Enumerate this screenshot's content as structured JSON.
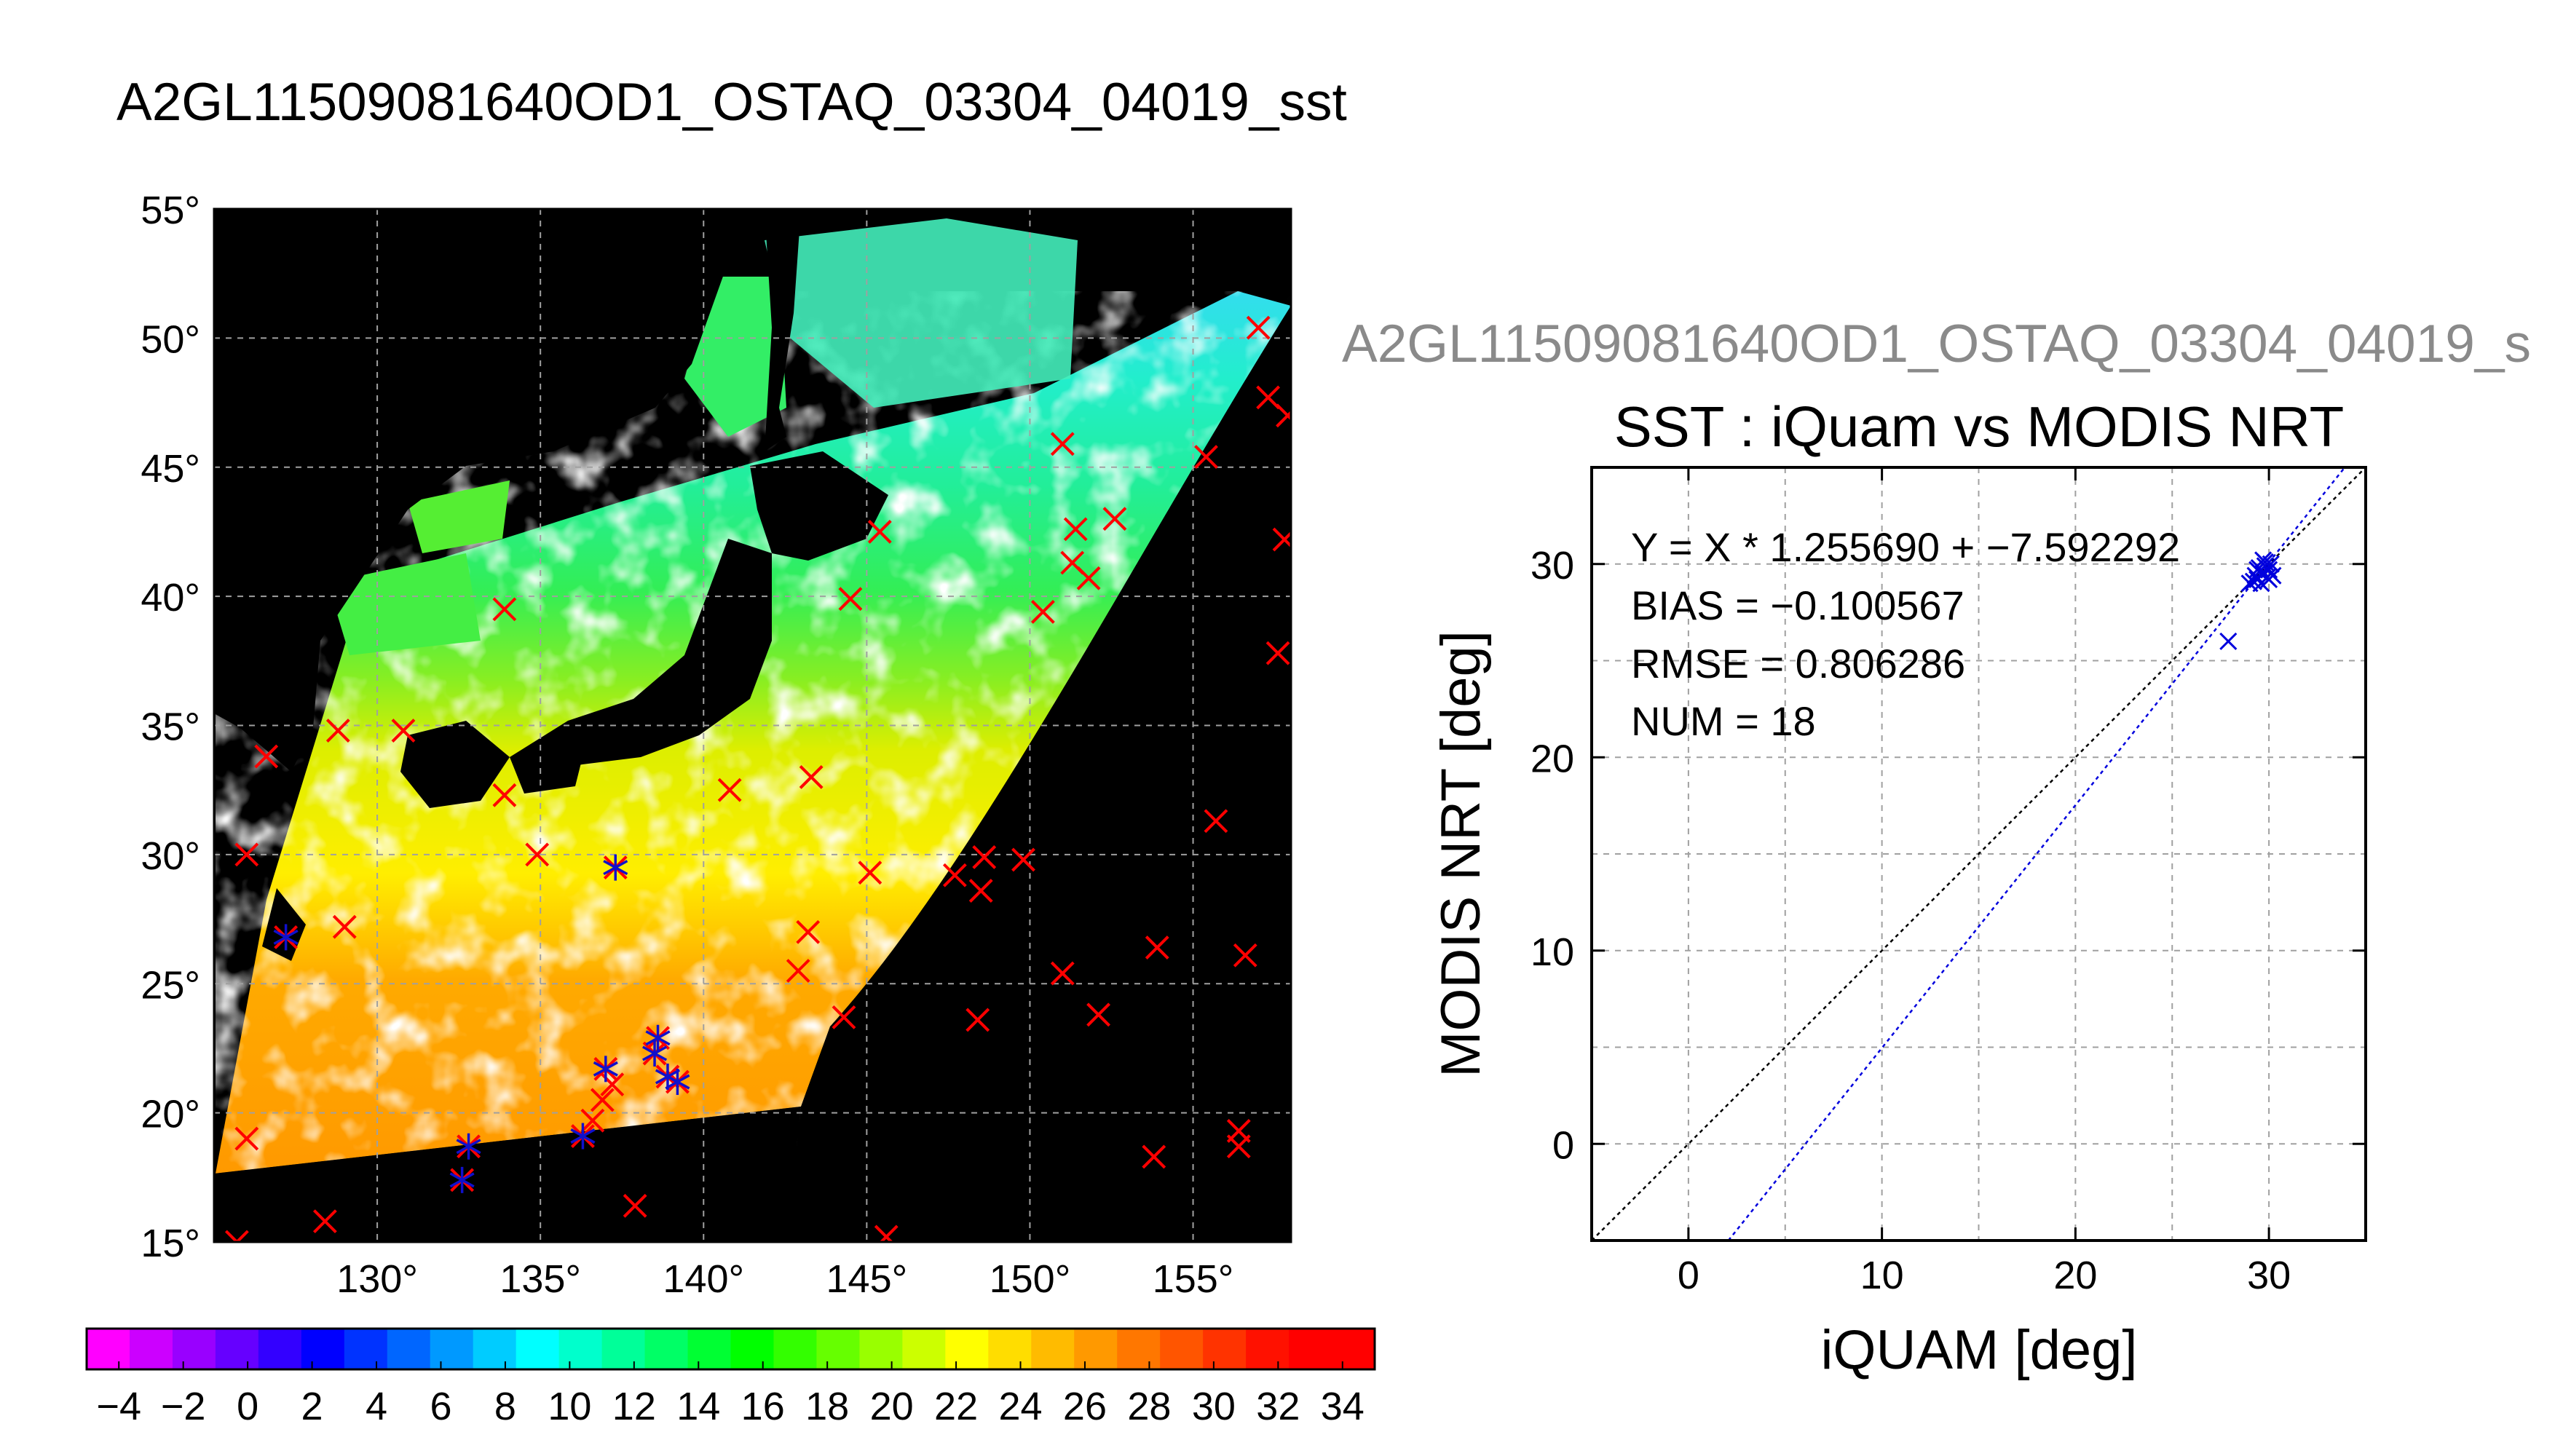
{
  "figure_title": "A2GL11509081640OD1_OSTAQ_03304_04019_sst",
  "scatter_ghost_title": "A2GL11509081640OD1_OSTAQ_03304_04019_s",
  "colors": {
    "map_background": "#000000",
    "grid": "#a0a0a0",
    "buoy_marker": "#ff0000",
    "matchup_marker": "#1010cc",
    "fit_line": "#0000dd",
    "one_to_one_line": "#000000"
  },
  "chart_data": [
    {
      "type": "heatmap",
      "description_type": "map",
      "xaxis_ticks": [
        "130°",
        "135°",
        "140°",
        "145°",
        "150°",
        "155°"
      ],
      "x_tick_values": [
        130,
        135,
        140,
        145,
        150,
        155
      ],
      "yaxis_ticks": [
        "15°",
        "20°",
        "25°",
        "30°",
        "35°",
        "40°",
        "45°",
        "50°",
        "55°"
      ],
      "y_tick_values": [
        15,
        20,
        25,
        30,
        35,
        40,
        45,
        50,
        55
      ],
      "xlim": [
        125,
        158
      ],
      "ylim": [
        15,
        55
      ],
      "grid": true,
      "red_x_markers": [
        [
          125.7,
          15.0
        ],
        [
          126.0,
          19.0
        ],
        [
          126.0,
          30.0
        ],
        [
          126.6,
          33.8
        ],
        [
          127.2,
          26.8
        ],
        [
          128.4,
          15.8
        ],
        [
          128.8,
          34.8
        ],
        [
          129.0,
          27.2
        ],
        [
          130.8,
          34.8
        ],
        [
          132.6,
          17.4
        ],
        [
          132.8,
          18.7
        ],
        [
          133.9,
          39.5
        ],
        [
          133.9,
          32.3
        ],
        [
          134.9,
          30.0
        ],
        [
          136.3,
          19.1
        ],
        [
          136.6,
          19.7
        ],
        [
          136.9,
          20.5
        ],
        [
          137.2,
          21.1
        ],
        [
          137.0,
          21.7
        ],
        [
          137.3,
          29.5
        ],
        [
          137.9,
          16.4
        ],
        [
          138.5,
          22.3
        ],
        [
          138.6,
          22.9
        ],
        [
          138.9,
          21.4
        ],
        [
          139.2,
          21.2
        ],
        [
          140.8,
          32.5
        ],
        [
          142.9,
          25.5
        ],
        [
          143.2,
          27.0
        ],
        [
          143.3,
          33.0
        ],
        [
          144.3,
          23.7
        ],
        [
          144.5,
          39.9
        ],
        [
          145.1,
          29.3
        ],
        [
          145.4,
          42.5
        ],
        [
          145.6,
          15.2
        ],
        [
          147.7,
          29.2
        ],
        [
          148.4,
          23.6
        ],
        [
          148.5,
          28.6
        ],
        [
          148.6,
          29.9
        ],
        [
          149.8,
          29.8
        ],
        [
          150.4,
          39.4
        ],
        [
          151.0,
          45.9
        ],
        [
          151.0,
          25.4
        ],
        [
          151.3,
          41.3
        ],
        [
          151.4,
          42.6
        ],
        [
          151.8,
          40.7
        ],
        [
          152.1,
          23.8
        ],
        [
          152.6,
          43.0
        ],
        [
          153.8,
          18.3
        ],
        [
          153.9,
          26.4
        ],
        [
          155.4,
          45.4
        ],
        [
          155.7,
          31.3
        ],
        [
          156.4,
          19.3
        ],
        [
          156.4,
          18.7
        ],
        [
          156.6,
          26.1
        ],
        [
          157.0,
          50.4
        ],
        [
          157.3,
          47.7
        ],
        [
          157.6,
          37.8
        ],
        [
          157.8,
          42.2
        ],
        [
          157.9,
          47.0
        ]
      ],
      "blue_star_markers": [
        [
          127.2,
          26.8
        ],
        [
          132.6,
          17.4
        ],
        [
          132.8,
          18.7
        ],
        [
          136.3,
          19.1
        ],
        [
          137.0,
          21.7
        ],
        [
          137.3,
          29.5
        ],
        [
          138.5,
          22.3
        ],
        [
          138.6,
          22.9
        ],
        [
          138.9,
          21.4
        ],
        [
          139.2,
          21.2
        ]
      ]
    },
    {
      "type": "heatmap",
      "description_type": "colorbar",
      "tick_labels": [
        "−4",
        "−2",
        "0",
        "2",
        "4",
        "6",
        "8",
        "10",
        "12",
        "14",
        "16",
        "18",
        "20",
        "22",
        "24",
        "26",
        "28",
        "30",
        "32",
        "34"
      ],
      "tick_values": [
        -4,
        -2,
        0,
        2,
        4,
        6,
        8,
        10,
        12,
        14,
        16,
        18,
        20,
        22,
        24,
        26,
        28,
        30,
        32,
        34
      ],
      "range": [
        -5,
        35
      ],
      "colors": [
        "#ff00ff",
        "#cc00ff",
        "#9900ff",
        "#6600ff",
        "#3300ff",
        "#0000ff",
        "#0033ff",
        "#0066ff",
        "#0099ff",
        "#00ccff",
        "#00ffff",
        "#00ffcc",
        "#00ff99",
        "#00ff66",
        "#00ff33",
        "#00ff00",
        "#33ff00",
        "#66ff00",
        "#99ff00",
        "#ccff00",
        "#ffff00",
        "#ffdd00",
        "#ffbb00",
        "#ff9900",
        "#ff7700",
        "#ff5500",
        "#ff3300",
        "#ff1100",
        "#ff0000",
        "#ff0000"
      ]
    },
    {
      "type": "scatter",
      "title": "SST : iQuam vs MODIS NRT",
      "xlabel": "iQUAM [deg]",
      "ylabel": "MODIS NRT [deg]",
      "xlim": [
        -5,
        35
      ],
      "ylim": [
        -5,
        35
      ],
      "xticks": [
        0,
        10,
        20,
        30
      ],
      "yticks": [
        0,
        10,
        20,
        30
      ],
      "grid": true,
      "stats": {
        "fit": "Y = X * 1.255690 + −7.592292",
        "bias": "BIAS = −0.100567",
        "rmse": "RMSE = 0.806286",
        "num": "NUM = 18"
      },
      "fit_slope": 1.25569,
      "fit_intercept": -7.592292,
      "points": [
        [
          27.9,
          26.0
        ],
        [
          29.0,
          29.0
        ],
        [
          29.3,
          29.4
        ],
        [
          29.4,
          29.2
        ],
        [
          29.5,
          29.8
        ],
        [
          29.6,
          29.0
        ],
        [
          29.7,
          29.5
        ],
        [
          29.8,
          30.1
        ],
        [
          29.9,
          29.3
        ],
        [
          30.0,
          29.7
        ],
        [
          30.1,
          30.0
        ],
        [
          30.2,
          29.4
        ],
        [
          29.5,
          29.6
        ],
        [
          29.8,
          29.9
        ],
        [
          29.2,
          29.1
        ],
        [
          29.7,
          30.2
        ],
        [
          30.0,
          29.2
        ],
        [
          29.4,
          29.7
        ]
      ]
    }
  ]
}
